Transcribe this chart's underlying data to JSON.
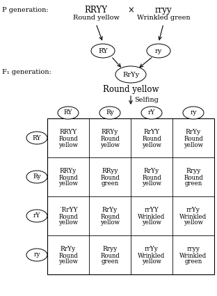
{
  "background_color": "#ffffff",
  "p_gen_label": "P generation:",
  "f1_gen_label": "F₁ generation:",
  "p_parent1_genotype": "RRYY",
  "p_parent1_phenotype": "Round yellow",
  "p_parent2_genotype": "rryy",
  "p_parent2_phenotype": "Wrinkled green",
  "cross_symbol": "×",
  "gamete1": "RY",
  "gamete2": "ry",
  "f1_genotype": "RrYy",
  "f1_phenotype": "Round yellow",
  "selfing_label": "Selfing",
  "col_headers": [
    "RY",
    "Ry",
    "rY",
    "ry"
  ],
  "row_headers": [
    "RY",
    "Ry",
    "rY",
    "ry"
  ],
  "grid_data": [
    [
      [
        "RRYY",
        "Round",
        "yellow"
      ],
      [
        "RRYy",
        "Round",
        "yellow"
      ],
      [
        "RrYY",
        "Round",
        "yellow"
      ],
      [
        "RrYy",
        "Round",
        "yellow"
      ]
    ],
    [
      [
        "RRYy",
        "Round",
        "yellow"
      ],
      [
        "RRyy",
        "Round",
        "green"
      ],
      [
        "RrYy",
        "Round",
        "yellow"
      ],
      [
        "Rryy",
        "Round",
        "green"
      ]
    ],
    [
      [
        "RrYY",
        "Round",
        "yellow"
      ],
      [
        "RrYy",
        "Round",
        "yellow"
      ],
      [
        "rrYY",
        "Wrinkled",
        "yellow"
      ],
      [
        "rrYy",
        "Wrinkled",
        "yellow"
      ]
    ],
    [
      [
        "RrYy",
        "Round",
        "yellow"
      ],
      [
        "Rryy",
        "Round",
        "green"
      ],
      [
        "rrYy",
        "Wrinkled",
        "yellow"
      ],
      [
        "rryy",
        "Wrinkled",
        "green"
      ]
    ]
  ],
  "row2col1_prefix": "˙"
}
